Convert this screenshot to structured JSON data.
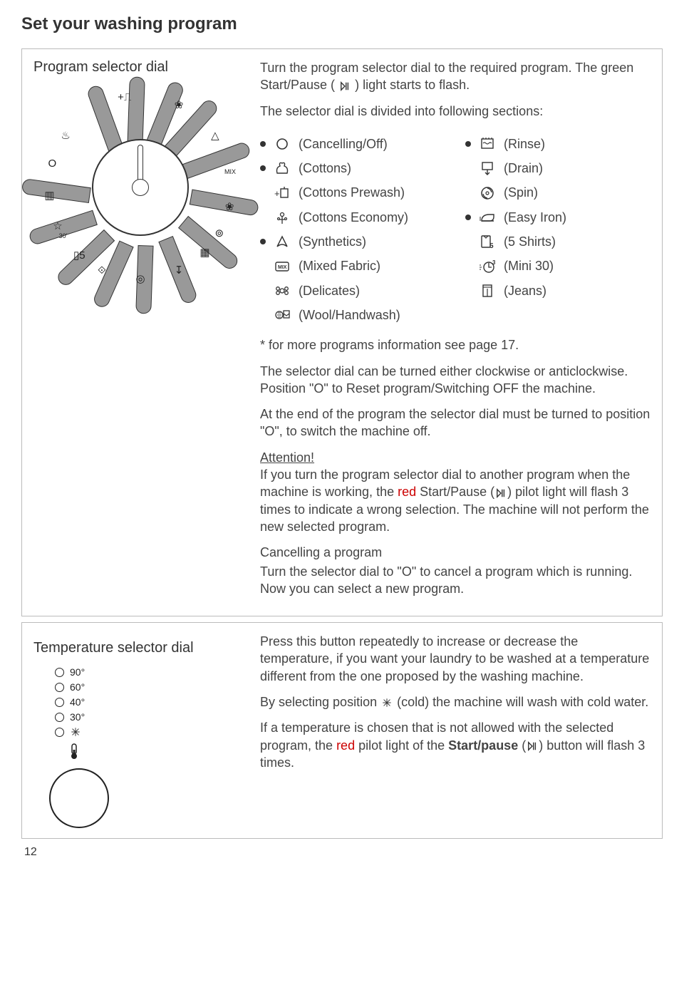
{
  "title": "Set your washing program",
  "page_number": "12",
  "colors": {
    "text": "#333333",
    "panel_border": "#bbbbbb",
    "segment_fill": "#999999",
    "background": "#ffffff"
  },
  "program_panel": {
    "heading": "Program selector dial",
    "intro_line1": "Turn the program selector dial to the required program. The green Start/Pause (",
    "intro_line2": ") light starts to flash.",
    "sections_intro": "The selector dial is divided into following sections:",
    "left_items": [
      {
        "bullet": true,
        "icon": "off",
        "label": "(Cancelling/Off)"
      },
      {
        "bullet": true,
        "icon": "cottons",
        "label": "(Cottons)"
      },
      {
        "bullet": false,
        "icon": "prewash",
        "label": "(Cottons Prewash)"
      },
      {
        "bullet": false,
        "icon": "economy",
        "label": "(Cottons Economy)"
      },
      {
        "bullet": true,
        "icon": "synthetics",
        "label": "(Synthetics)"
      },
      {
        "bullet": false,
        "icon": "mix",
        "label": "(Mixed Fabric)"
      },
      {
        "bullet": false,
        "icon": "delicates",
        "label": "(Delicates)"
      },
      {
        "bullet": false,
        "icon": "wool",
        "label": "(Wool/Handwash)"
      }
    ],
    "right_items": [
      {
        "bullet": true,
        "icon": "rinse",
        "label": "(Rinse)"
      },
      {
        "bullet": false,
        "icon": "drain",
        "label": "(Drain)"
      },
      {
        "bullet": false,
        "icon": "spin",
        "label": "(Spin)"
      },
      {
        "bullet": true,
        "icon": "easyiron",
        "label": "(Easy Iron)"
      },
      {
        "bullet": false,
        "icon": "shirts",
        "label": "(5 Shirts)"
      },
      {
        "bullet": false,
        "icon": "mini30",
        "label": "(Mini 30)"
      },
      {
        "bullet": false,
        "icon": "jeans",
        "label": "(Jeans)"
      }
    ],
    "footnote": "* for more programs information see page 17.",
    "para1": "The selector dial can be turned either clockwise or anticlockwise. Position \"O\" to Reset program/Switching OFF the machine.",
    "para2": "At the end of the program the selector dial must be turned to position \"O\", to switch the machine off.",
    "attention_label": "Attention!",
    "attention_text_a": "If you turn the program selector dial to another program when the machine is working, the ",
    "attention_red": "red",
    "attention_text_b": " Start/Pause (",
    "attention_text_c": ") pilot light will flash 3 times to indicate a wrong selection. The machine will not perform the new selected program.",
    "cancel_heading": "Cancelling a program",
    "cancel_text": "Turn the selector dial to \"O\" to cancel a program which is running. Now you can select a new program."
  },
  "temp_panel": {
    "heading": "Temperature selector dial",
    "temps": [
      "90°",
      "60°",
      "40°",
      "30°"
    ],
    "para1": "Press this button repeatedly to increase or decrease the temperature, if you want your laundry to be washed at a temperature different from the one proposed by the washing machine.",
    "para2a": "By selecting position ",
    "para2b": " (cold) the machine will wash with cold water.",
    "para3a": "If a temperature is chosen that is not allowed with the selected program, the ",
    "para3_red": "red",
    "para3b": " pilot light of the ",
    "para3_bold": "Start/pause",
    "para3c": " (",
    "para3d": ") button will flash 3 times."
  },
  "dial": {
    "segments": 13,
    "seg_fill": "#999999",
    "icons": [
      {
        "name": "star-icon",
        "angle": -115,
        "glyph": "☆"
      },
      {
        "name": "jeans-icon",
        "angle": -95,
        "glyph": "▥"
      },
      {
        "name": "off-icon",
        "angle": -75,
        "glyph": "O"
      },
      {
        "name": "cottons-icon",
        "angle": -55,
        "glyph": "♨"
      },
      {
        "name": "prewash-icon",
        "angle": -10,
        "glyph": "+⎍"
      },
      {
        "name": "economy-icon",
        "angle": 25,
        "glyph": "❀"
      },
      {
        "name": "synthetics-icon",
        "angle": 55,
        "glyph": "△"
      },
      {
        "name": "mix-icon",
        "angle": 80,
        "glyph": "MIX"
      },
      {
        "name": "delicates-icon",
        "angle": 102,
        "glyph": "❀"
      },
      {
        "name": "wool-icon",
        "angle": 120,
        "glyph": "⊚"
      },
      {
        "name": "rinse-icon",
        "angle": 135,
        "glyph": "▦"
      },
      {
        "name": "drain-icon",
        "angle": 155,
        "glyph": "↧"
      },
      {
        "name": "spin-icon",
        "angle": 180,
        "glyph": "◎"
      },
      {
        "name": "easyiron-icon",
        "angle": 205,
        "glyph": "⟐"
      },
      {
        "name": "shirts-icon",
        "angle": 222,
        "glyph": "▯5"
      },
      {
        "name": "mini30-icon",
        "angle": 238,
        "glyph": "30'"
      }
    ]
  }
}
